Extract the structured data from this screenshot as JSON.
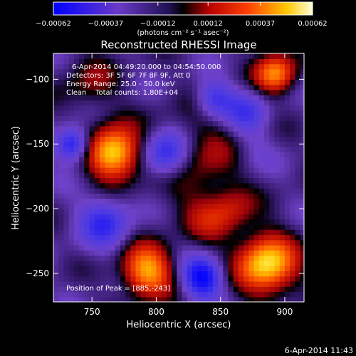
{
  "chart_data": {
    "type": "heatmap",
    "title": "Reconstructed RHESSI Image",
    "xlabel": "Heliocentric X (arcsec)",
    "ylabel": "Heliocentric Y (arcsec)",
    "xlim": [
      720,
      915
    ],
    "ylim": [
      -272,
      -80
    ],
    "x_ticks": [
      750,
      800,
      850,
      900
    ],
    "x_tick_labels": [
      "750",
      "800",
      "850",
      "900"
    ],
    "y_ticks": [
      -100,
      -150,
      -200,
      -250
    ],
    "y_tick_labels": [
      "−100",
      "−150",
      "−200",
      "−250"
    ],
    "colorbar": {
      "min": -0.00062,
      "max": 0.00062,
      "tick_values": [
        -0.00062,
        -0.00037,
        -0.00012,
        0.00012,
        0.00037,
        0.00062
      ],
      "tick_labels": [
        "−0.00062",
        "−0.00037",
        "−0.00012",
        "0.00012",
        "0.00037",
        "0.00062"
      ],
      "unit_label": "(photons cm⁻² s⁻¹ asec⁻²)"
    },
    "annotations": {
      "time_range": "6-Apr-2014 04:49:20.000 to 04:54:50.000",
      "detectors": "Detectors: 3F 5F 6F 7F 8F 9F, Att 0",
      "energy_range": "Energy Range: 25.0 - 50.0 keV",
      "method_counts": "Clean    Total counts: 1.80E+04",
      "peak_position": "Position of Peak = [885,-243]"
    },
    "sources": [
      {
        "x": 767,
        "y": -157,
        "level": 1.0,
        "width": 14
      },
      {
        "x": 886,
        "y": -243,
        "level": 1.0,
        "width": 16
      },
      {
        "x": 793,
        "y": -248,
        "level": 0.85,
        "width": 14
      },
      {
        "x": 893,
        "y": -95,
        "level": 0.75,
        "width": 11
      },
      {
        "x": 830,
        "y": -162,
        "level": 0.35,
        "width": 26
      },
      {
        "x": 843,
        "y": -210,
        "level": 0.3,
        "width": 14
      },
      {
        "x": 860,
        "y": -200,
        "level": 0.25,
        "width": 12
      },
      {
        "x": 748,
        "y": -103,
        "level": 0.25,
        "width": 16
      },
      {
        "x": 875,
        "y": -155,
        "level": -0.15,
        "width": 12
      },
      {
        "x": 808,
        "y": -158,
        "level": -0.75,
        "width": 13
      },
      {
        "x": 735,
        "y": -150,
        "level": -0.7,
        "width": 9
      },
      {
        "x": 836,
        "y": -253,
        "level": -0.8,
        "width": 11
      },
      {
        "x": 845,
        "y": -115,
        "level": -0.5,
        "width": 10
      },
      {
        "x": 760,
        "y": -210,
        "level": -0.5,
        "width": 14
      },
      {
        "x": 870,
        "y": -125,
        "level": -0.4,
        "width": 12
      }
    ]
  },
  "footer": {
    "timestamp": "6-Apr-2014 11:43"
  }
}
